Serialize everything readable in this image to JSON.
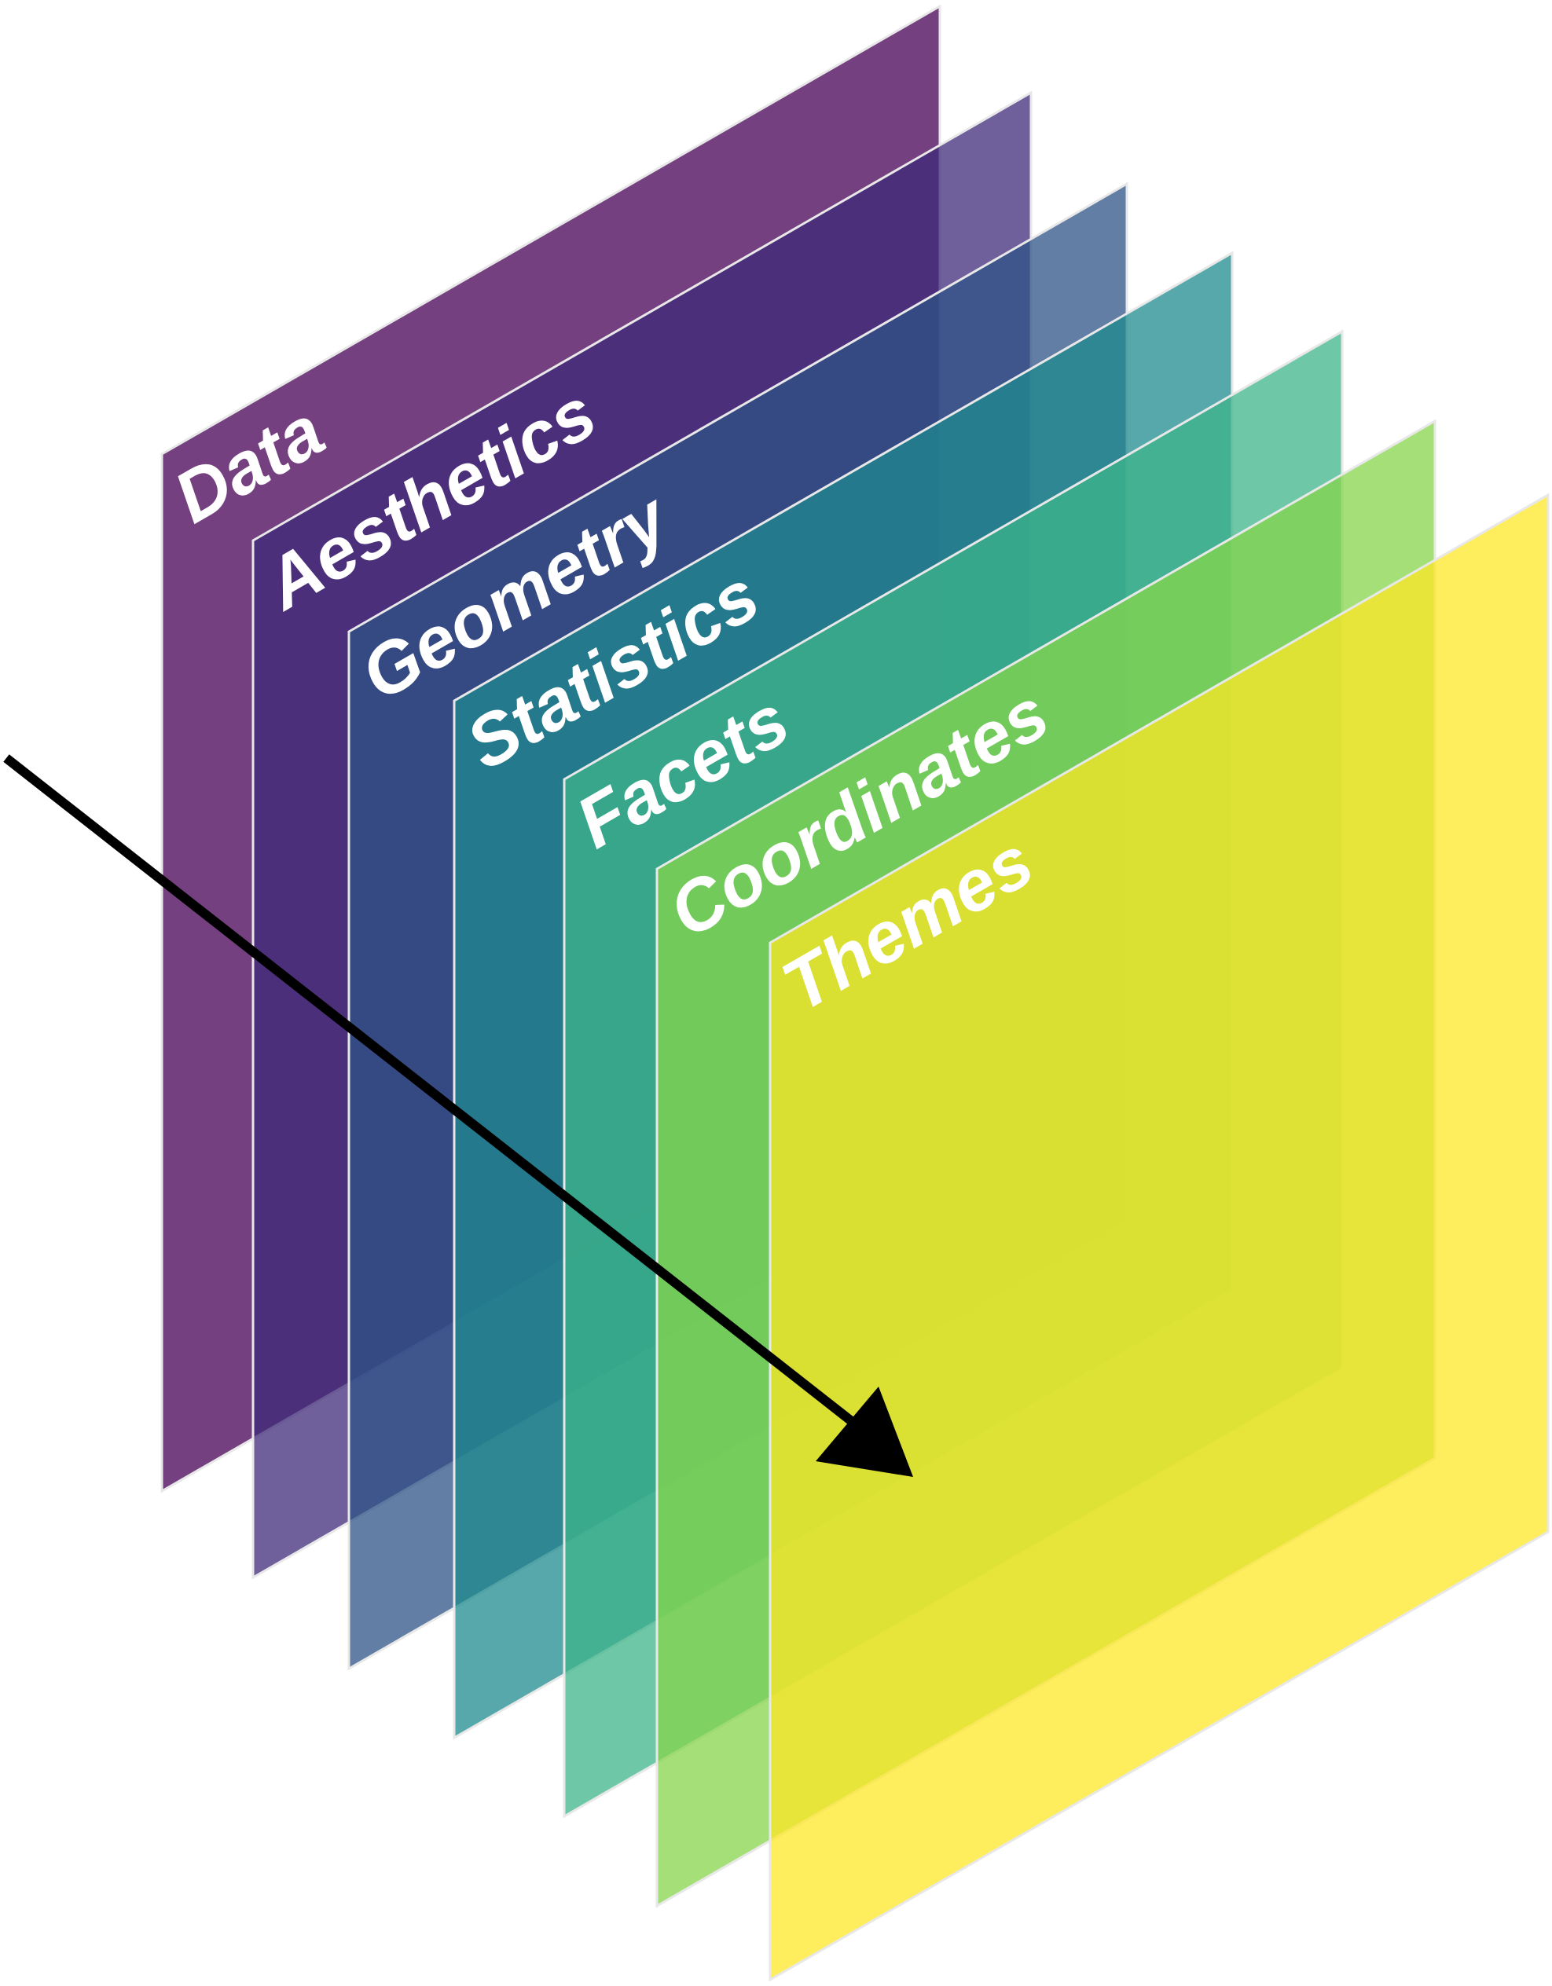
{
  "layers": [
    {
      "label": "Data",
      "color": "#5c1e68"
    },
    {
      "label": "Aesthetics",
      "color": "#3f2a78"
    },
    {
      "label": "Geometry",
      "color": "#2e5386"
    },
    {
      "label": "Statistics",
      "color": "#1f8b8f"
    },
    {
      "label": "Facets",
      "color": "#3db58a"
    },
    {
      "label": "Coordinates",
      "color": "#86d549"
    },
    {
      "label": "Themes",
      "color": "#fde725"
    }
  ],
  "arrow": {
    "color": "#000000"
  }
}
